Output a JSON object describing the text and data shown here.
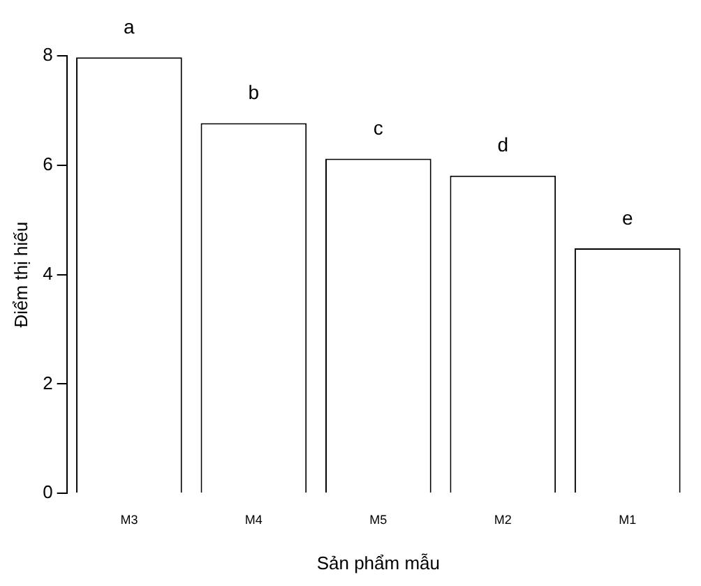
{
  "chart_data": {
    "type": "bar",
    "xlabel": "Sản phẩm mẫu",
    "ylabel": "Điểm thị hiếu",
    "categories": [
      "M3",
      "M4",
      "M5",
      "M2",
      "M1"
    ],
    "values": [
      7.97,
      6.77,
      6.12,
      5.81,
      4.48
    ],
    "color": "#ffffff",
    "ylim": [
      0,
      8
    ],
    "yticks": [
      0,
      2,
      4,
      6,
      8
    ],
    "grid": false,
    "legend": false,
    "annotations": [
      {
        "text": "a",
        "x": "M3",
        "y": 7.97
      },
      {
        "text": "b",
        "x": "M4",
        "y": 6.77
      },
      {
        "text": "c",
        "x": "M5",
        "y": 6.12
      },
      {
        "text": "d",
        "x": "M2",
        "y": 5.81
      },
      {
        "text": "e",
        "x": "M1",
        "y": 4.48
      }
    ]
  }
}
